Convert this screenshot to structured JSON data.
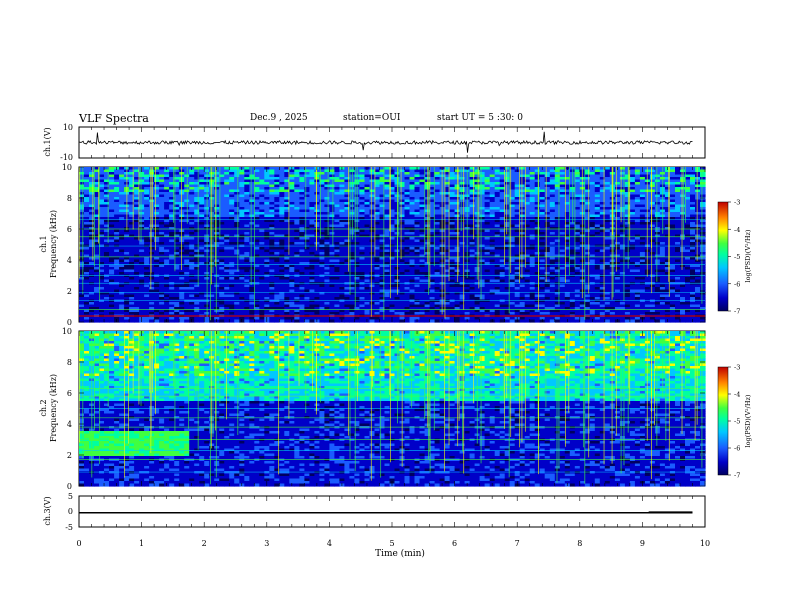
{
  "header": {
    "title": "VLF Spectra",
    "date": "Dec.9 , 2025",
    "station": "station=OUI",
    "start": "start UT = 5 :30: 0"
  },
  "chart_data": [
    {
      "type": "line",
      "panel": "ch1-waveform",
      "ylabel": "ch.1(V)",
      "yticks": [
        "10",
        "-10"
      ],
      "ylim": [
        -10,
        10
      ],
      "xlim": [
        0,
        10
      ],
      "series": [
        {
          "values_description_level": 0
        }
      ]
    },
    {
      "type": "heatmap",
      "panel": "ch1-spectrogram",
      "ylabel": "ch.1\nFrequency (kHz)",
      "ylim": [
        0,
        10
      ],
      "yticks": [
        "0",
        "2",
        "4",
        "6",
        "8",
        "10"
      ],
      "xlim": [
        0,
        10
      ],
      "colorbar": {
        "label": "log(PSD)(V²/Hz)",
        "ticks": [
          "-3",
          "-4",
          "-5",
          "-6",
          "-7"
        ],
        "range": [
          -7,
          -3
        ]
      }
    },
    {
      "type": "heatmap",
      "panel": "ch2-spectrogram",
      "ylabel": "ch.2\nFrequency (kHz)",
      "ylim": [
        0,
        10
      ],
      "yticks": [
        "0",
        "2",
        "4",
        "6",
        "8",
        "10"
      ],
      "xlim": [
        0,
        10
      ],
      "colorbar": {
        "label": "log(PSD)(V²/Hz)",
        "ticks": [
          "-3",
          "-4",
          "-5",
          "-6",
          "-7"
        ],
        "range": [
          -7,
          -3
        ]
      }
    },
    {
      "type": "line",
      "panel": "ch3-waveform",
      "ylabel": "ch.3(V)",
      "yticks": [
        "5",
        "0",
        "-5"
      ],
      "ylim": [
        -5,
        5
      ],
      "xlim": [
        0,
        10
      ],
      "series": [
        {
          "level": -0.4,
          "step_at_min": 9.1,
          "step_level": -0.2
        }
      ]
    }
  ],
  "xaxis": {
    "label": "Time (min)",
    "ticks": [
      "0",
      "1",
      "2",
      "3",
      "4",
      "5",
      "6",
      "7",
      "8",
      "9",
      "10"
    ]
  },
  "colors": {
    "waveform": "#000000",
    "colormap": [
      "#000060",
      "#0000c8",
      "#1a5cff",
      "#00c8ff",
      "#00ffa0",
      "#40ff40",
      "#ffff00",
      "#ff8000",
      "#c00000"
    ]
  }
}
